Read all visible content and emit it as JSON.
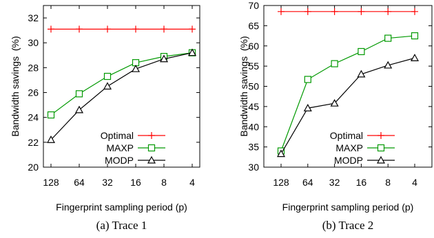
{
  "chart_data": [
    {
      "type": "line",
      "caption": "(a) Trace 1",
      "xlabel": "Fingerprint sampling period (p)",
      "ylabel": "Bandwidth savings  (%)",
      "categories": [
        "128",
        "64",
        "32",
        "16",
        "8",
        "4"
      ],
      "ylim": [
        20,
        33
      ],
      "yticks": [
        20,
        22,
        24,
        26,
        28,
        30,
        32
      ],
      "legend_position": "bottom-right",
      "series": [
        {
          "name": "Optimal",
          "color": "#ff0000",
          "marker": "plus",
          "values": [
            31.1,
            31.1,
            31.1,
            31.1,
            31.1,
            31.1
          ]
        },
        {
          "name": "MAXP",
          "color": "#009900",
          "marker": "square",
          "values": [
            24.2,
            25.9,
            27.3,
            28.4,
            28.9,
            29.2
          ]
        },
        {
          "name": "MODP",
          "color": "#000000",
          "marker": "triangle",
          "values": [
            22.2,
            24.6,
            26.5,
            27.9,
            28.7,
            29.2
          ]
        }
      ]
    },
    {
      "type": "line",
      "caption": "(b) Trace 2",
      "xlabel": "Fingerprint sampling period (p)",
      "ylabel": "Bandwidth savings  (%)",
      "categories": [
        "128",
        "64",
        "32",
        "16",
        "8",
        "4"
      ],
      "ylim": [
        30,
        70
      ],
      "yticks": [
        30,
        35,
        40,
        45,
        50,
        55,
        60,
        65,
        70
      ],
      "legend_position": "bottom-right",
      "series": [
        {
          "name": "Optimal",
          "color": "#ff0000",
          "marker": "plus",
          "values": [
            68.5,
            68.5,
            68.5,
            68.5,
            68.5,
            68.5
          ]
        },
        {
          "name": "MAXP",
          "color": "#009900",
          "marker": "square",
          "values": [
            34.0,
            51.7,
            55.6,
            58.6,
            61.9,
            62.5
          ]
        },
        {
          "name": "MODP",
          "color": "#000000",
          "marker": "triangle",
          "values": [
            33.3,
            44.6,
            45.8,
            53.0,
            55.2,
            57.0
          ]
        }
      ]
    }
  ]
}
